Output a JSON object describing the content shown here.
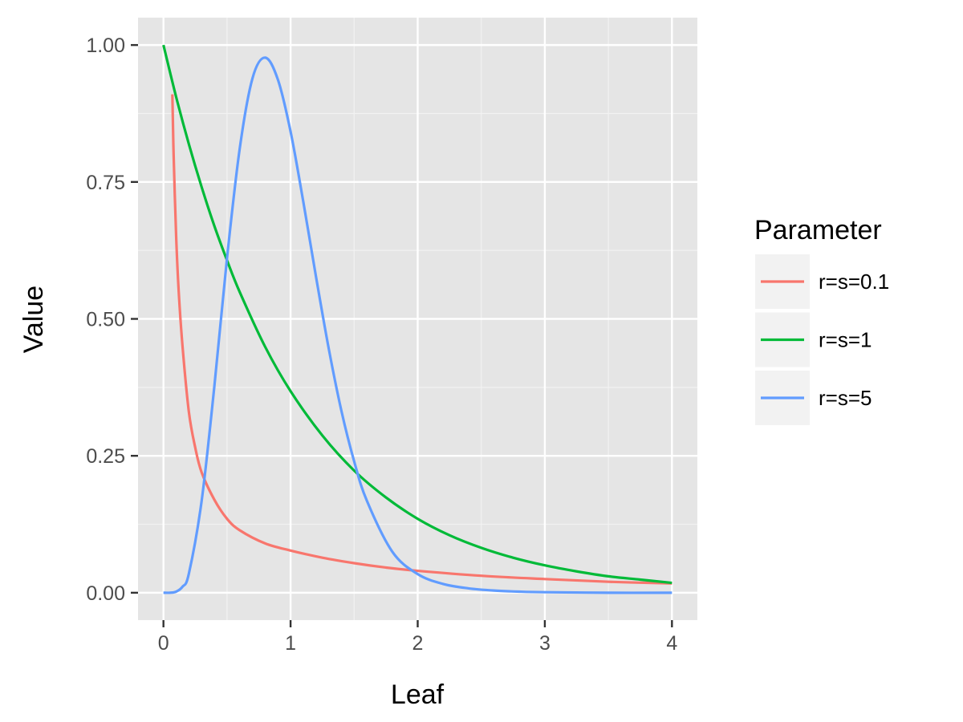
{
  "chart_data": {
    "type": "line",
    "xlabel": "Leaf",
    "ylabel": "Value",
    "xlim": [
      -0.2,
      4.2
    ],
    "ylim": [
      -0.05,
      1.05
    ],
    "x_ticks": [
      0,
      1,
      2,
      3,
      4
    ],
    "x_tick_labels": [
      "0",
      "1",
      "2",
      "3",
      "4"
    ],
    "y_ticks": [
      0,
      0.25,
      0.5,
      0.75,
      1.0
    ],
    "y_tick_labels": [
      "0.00",
      "0.25",
      "0.50",
      "0.75",
      "1.00"
    ],
    "grid": true,
    "panel_background": "#e5e5e5",
    "legend": {
      "title": "Parameter",
      "position": "right"
    },
    "series": [
      {
        "name": "r=s=0.1",
        "color": "#f8766d",
        "x": [
          0.07,
          0.08,
          0.1,
          0.12,
          0.15,
          0.2,
          0.25,
          0.3,
          0.4,
          0.5,
          0.6,
          0.8,
          1.0,
          1.25,
          1.5,
          1.75,
          2.0,
          2.5,
          3.0,
          3.5,
          4.0
        ],
        "y": [
          0.91,
          0.8,
          0.65,
          0.55,
          0.45,
          0.33,
          0.265,
          0.22,
          0.17,
          0.135,
          0.114,
          0.09,
          0.077,
          0.064,
          0.054,
          0.046,
          0.04,
          0.031,
          0.025,
          0.02,
          0.017
        ]
      },
      {
        "name": "r=s=1",
        "color": "#00ba38",
        "x": [
          0.0,
          0.1,
          0.2,
          0.3,
          0.4,
          0.5,
          0.6,
          0.8,
          1.0,
          1.25,
          1.5,
          1.75,
          2.0,
          2.25,
          2.5,
          2.75,
          3.0,
          3.25,
          3.5,
          3.75,
          4.0
        ],
        "y": [
          1.0,
          0.905,
          0.819,
          0.741,
          0.67,
          0.607,
          0.549,
          0.449,
          0.368,
          0.287,
          0.223,
          0.174,
          0.135,
          0.105,
          0.082,
          0.064,
          0.05,
          0.039,
          0.03,
          0.024,
          0.018
        ]
      },
      {
        "name": "r=s=5",
        "color": "#619cff",
        "x": [
          0.0,
          0.05,
          0.1,
          0.15,
          0.2,
          0.3,
          0.4,
          0.5,
          0.6,
          0.7,
          0.8,
          0.9,
          1.0,
          1.1,
          1.2,
          1.3,
          1.4,
          1.5,
          1.6,
          1.8,
          2.0,
          2.2,
          2.4,
          2.6,
          2.8,
          3.0,
          3.5,
          4.0
        ],
        "y": [
          0.0,
          0.0,
          0.002,
          0.011,
          0.035,
          0.167,
          0.376,
          0.611,
          0.811,
          0.939,
          0.977,
          0.937,
          0.842,
          0.714,
          0.577,
          0.446,
          0.332,
          0.24,
          0.168,
          0.075,
          0.034,
          0.016,
          0.008,
          0.004,
          0.002,
          0.001,
          0.0,
          0.0
        ]
      }
    ]
  }
}
